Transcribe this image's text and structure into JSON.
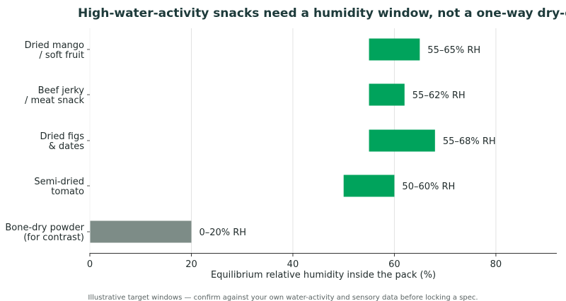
{
  "chart_data": {
    "type": "bar",
    "orientation": "horizontal",
    "title": "High-water-activity snacks need a humidity window, not a one-way dry-down",
    "xlabel": "Equilibrium relative humidity inside the pack (%)",
    "ylabel": "",
    "xlim": [
      0,
      92
    ],
    "x_ticks": [
      0,
      20,
      40,
      60,
      80
    ],
    "grid": "vertical",
    "categories": [
      [
        "Dried mango",
        "/ soft fruit"
      ],
      [
        "Beef jerky",
        "/ meat snack"
      ],
      [
        "Dried figs",
        "& dates"
      ],
      [
        "Semi-dried",
        "tomato"
      ],
      [
        "Bone-dry powder",
        "(for contrast)"
      ]
    ],
    "ranges": [
      {
        "start": 55,
        "end": 65,
        "label": "55–65% RH",
        "color": "#00a35c"
      },
      {
        "start": 55,
        "end": 62,
        "label": "55–62% RH",
        "color": "#00a35c"
      },
      {
        "start": 55,
        "end": 68,
        "label": "55–68% RH",
        "color": "#00a35c"
      },
      {
        "start": 50,
        "end": 60,
        "label": "50–60% RH",
        "color": "#00a35c"
      },
      {
        "start": 0,
        "end": 20,
        "label": "0–20% RH",
        "color": "#7d8c87"
      }
    ],
    "footnote": "Illustrative target windows — confirm against your own water-activity and sensory data before locking a spec."
  },
  "colors": {
    "accent": "#00a35c",
    "contrast": "#7d8c87",
    "title": "#1d3a3a",
    "grid": "#e2e2e2",
    "axis": "#333333"
  }
}
